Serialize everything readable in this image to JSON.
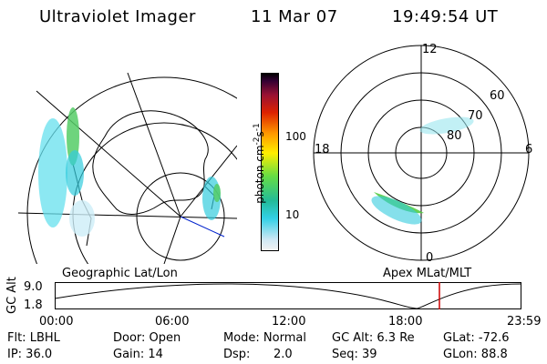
{
  "header": {
    "title": "Ultraviolet Imager",
    "date": "11 Mar 07",
    "time": "19:49:54 UT"
  },
  "colorbar": {
    "unit": "photon cm",
    "exp1": "-2",
    "mid": "s",
    "exp2": "-1",
    "tick_100": "100",
    "tick_10": "10"
  },
  "polar": {
    "mlt_top": "12",
    "mlt_left": "18",
    "mlt_right": "6",
    "mlt_bottom": "0",
    "lat_60": "60",
    "lat_70": "70",
    "lat_80": "80"
  },
  "labels": {
    "left_caption": "Geographic Lat/Lon",
    "right_caption": "Apex  MLat/MLT"
  },
  "timeline": {
    "axis_label": "GC Alt",
    "y_top": "9.0",
    "y_bottom": "1.8",
    "ticks": [
      "00:00",
      "06:00",
      "12:00",
      "18:00",
      "23:59"
    ]
  },
  "status": {
    "flt": "Flt: LBHL",
    "ip": "IP: 36.0",
    "door": "Door: Open",
    "gain": "Gain: 14",
    "mode": "Mode: Normal",
    "dsp_label": "Dsp:",
    "dsp_value": "2.0",
    "gc_alt": "GC Alt: 6.3 Re",
    "seq": "Seq: 39",
    "glat": "GLat: -72.6",
    "glon": "GLon: 88.8"
  },
  "colors": {
    "accent_line": "#cc0000",
    "sun_line": "#0000cc"
  }
}
